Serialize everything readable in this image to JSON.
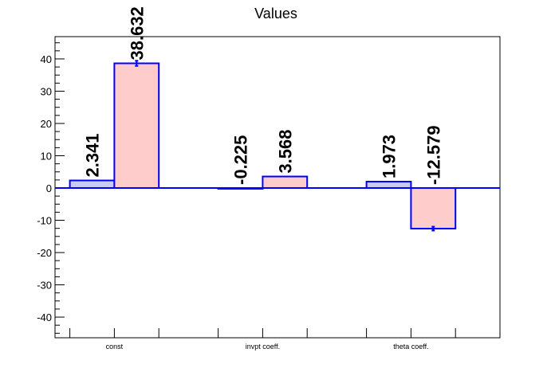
{
  "chart_data": {
    "type": "bar",
    "title": "Values",
    "categories": [
      "const",
      "invpt coeff.",
      "theta coeff."
    ],
    "series": [
      {
        "values": [
          2.341,
          -0.225,
          1.973
        ],
        "errors": [
          0,
          0,
          0
        ],
        "color": "#c9ccf2"
      },
      {
        "values": [
          38.632,
          3.568,
          -12.579
        ],
        "errors": [
          0.8,
          0,
          0.6
        ],
        "color": "#ffcccc"
      }
    ],
    "value_labels": [
      [
        "2.341",
        "-0.225",
        "1.973"
      ],
      [
        "38.632",
        "3.568",
        "-12.579"
      ]
    ],
    "ylim": [
      -46.4,
      46.9
    ],
    "yticks": [
      -40,
      -30,
      -20,
      -10,
      0,
      10,
      20,
      30,
      40
    ],
    "outline_color": "#0000ff"
  }
}
